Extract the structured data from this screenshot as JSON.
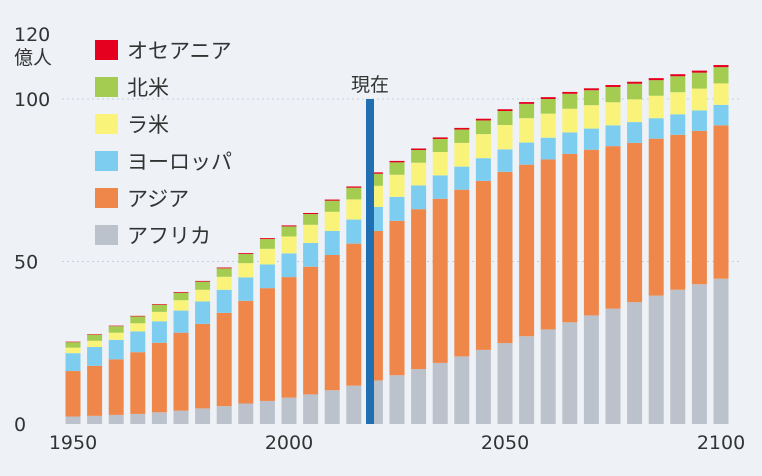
{
  "chart_data": {
    "type": "bar",
    "stacked": true,
    "ylabel_unit": "億人",
    "ylim": [
      0,
      120
    ],
    "y_ticks": [
      0,
      50,
      100,
      120
    ],
    "x_ticks": [
      "1950",
      "2000",
      "2050",
      "2100"
    ],
    "grid": "horizontal dotted",
    "legend_position": "top-left",
    "annotation": {
      "label": "現在",
      "x": 2020
    },
    "x": [
      1950,
      1955,
      1960,
      1965,
      1970,
      1975,
      1980,
      1985,
      1990,
      1995,
      2000,
      2005,
      2010,
      2015,
      2020,
      2025,
      2030,
      2035,
      2040,
      2045,
      2050,
      2055,
      2060,
      2065,
      2070,
      2075,
      2080,
      2085,
      2090,
      2095,
      2100
    ],
    "series": [
      {
        "name": "アフリカ",
        "color": "#bbc2cb",
        "values": [
          2.3,
          2.5,
          2.8,
          3.1,
          3.6,
          4.1,
          4.8,
          5.5,
          6.3,
          7.1,
          8.1,
          9.1,
          10.4,
          11.8,
          13.4,
          15.0,
          16.9,
          18.8,
          20.8,
          22.8,
          24.9,
          27.0,
          29.1,
          31.3,
          33.4,
          35.5,
          37.5,
          39.5,
          41.3,
          43.0,
          44.7
        ]
      },
      {
        "name": "アジア",
        "color": "#f0874a",
        "values": [
          14.0,
          15.4,
          17.1,
          19.0,
          21.4,
          24.0,
          26.0,
          28.7,
          31.6,
          34.7,
          37.1,
          39.3,
          41.6,
          43.7,
          46.0,
          47.5,
          49.2,
          50.5,
          51.3,
          52.0,
          52.7,
          52.8,
          52.3,
          51.8,
          51.0,
          50.0,
          49.0,
          48.3,
          47.7,
          47.2,
          47.2
        ]
      },
      {
        "name": "ヨーロッパ",
        "color": "#7dcdf0",
        "values": [
          5.5,
          5.8,
          6.0,
          6.4,
          6.6,
          6.8,
          6.9,
          7.1,
          7.2,
          7.3,
          7.3,
          7.3,
          7.4,
          7.4,
          7.4,
          7.4,
          7.3,
          7.2,
          7.1,
          7.0,
          6.9,
          6.8,
          6.7,
          6.6,
          6.5,
          6.4,
          6.4,
          6.3,
          6.3,
          6.3,
          6.3
        ]
      },
      {
        "name": "ラ米",
        "color": "#faf37a",
        "values": [
          1.7,
          1.9,
          2.2,
          2.5,
          2.9,
          3.2,
          3.6,
          4.0,
          4.4,
          4.8,
          5.2,
          5.6,
          5.9,
          6.2,
          6.5,
          6.8,
          7.0,
          7.2,
          7.3,
          7.4,
          7.5,
          7.5,
          7.4,
          7.3,
          7.2,
          7.1,
          7.0,
          6.9,
          6.8,
          6.7,
          6.6
        ]
      },
      {
        "name": "北米",
        "color": "#a3cc51",
        "values": [
          1.7,
          1.9,
          2.0,
          2.1,
          2.2,
          2.3,
          2.5,
          2.6,
          2.8,
          3.0,
          3.1,
          3.3,
          3.4,
          3.6,
          3.7,
          3.8,
          3.9,
          4.0,
          4.1,
          4.2,
          4.3,
          4.4,
          4.5,
          4.6,
          4.6,
          4.7,
          4.8,
          4.8,
          4.9,
          4.9,
          5.0
        ]
      },
      {
        "name": "オセアニア",
        "color": "#e6001f",
        "values": [
          0.13,
          0.14,
          0.16,
          0.18,
          0.2,
          0.22,
          0.23,
          0.25,
          0.27,
          0.29,
          0.31,
          0.33,
          0.36,
          0.39,
          0.43,
          0.45,
          0.47,
          0.49,
          0.51,
          0.53,
          0.55,
          0.56,
          0.57,
          0.58,
          0.59,
          0.6,
          0.61,
          0.62,
          0.63,
          0.64,
          0.65
        ]
      }
    ]
  }
}
